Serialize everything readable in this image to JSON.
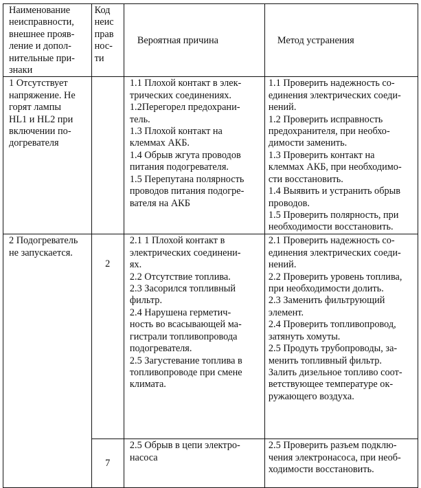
{
  "table": {
    "headers": {
      "fault": "Наименование\nнеисправности,\nвнешнее прояв-\nление и допол-\nнительные при-\nзнаки",
      "code": "Код\nнеис\nправ\nнос-\nти",
      "cause": "Вероятная причина",
      "fix": "Метод устранения"
    },
    "rows": [
      {
        "fault": "1 Отсутствует\nнапряжение. Не\nгорят лампы\nHL1 и HL2 при\nвключении по-\nдогревателя",
        "code": "",
        "cause": "1.1 Плохой контакт в элек-\nтрических соединениях.\n1.2Перегорел предохрани-\nтель.\n1.3 Плохой контакт на\nклеммах АКБ.\n1.4 Обрыв жгута проводов\nпитания подогревателя.\n1.5 Перепутана полярность\nпроводов питания подогре-\nвателя на АКБ",
        "fix": "1.1 Проверить надежность со-\nединения электрических соеди-\nнений.\n1.2 Проверить исправность\nпредохранителя, при необхо-\nдимости заменить.\n1.3 Проверить контакт на\nклеммах АКБ, при необходимо-\nсти восстановить.\n1.4 Выявить и устранить обрыв\nпроводов.\n1.5 Проверить полярность, при\nнеобходимости восстановить."
      },
      {
        "fault": "2 Подогреватель\nне запускается.",
        "code": "2",
        "cause": "2.1 1 Плохой контакт в\nэлектрических соединени-\nях.\n2.2 Отсутствие топлива.\n2.3 Засорился топливный\nфильтр.\n2.4 Нарушена герметич-\nность во всасывающей ма-\nгистрали топливопровода\nподогревателя.\n2.5 Загустевание топлива в\nтопливопроводе при смене\nклимата.",
        "fix": "2.1 Проверить надежность со-\nединения электрических соеди-\nнений.\n2.2 Проверить уровень топлива,\nпри необходимости долить.\n2.3 Заменить фильтрующий\nэлемент.\n2.4 Проверить топливопровод,\nзатянуть хомуты.\n2.5 Продуть трубопроводы, за-\nменить топливный фильтр.\nЗалить дизельное топливо соот-\nветствующее температуре ок-\nружающего воздуха."
      },
      {
        "code": "7",
        "cause": "2.5 Обрыв в цепи электро-\nнасоса",
        "fix": "2.5 Проверить разъем подклю-\nчения электронасоса, при необ-\nходимости восстановить."
      }
    ]
  }
}
